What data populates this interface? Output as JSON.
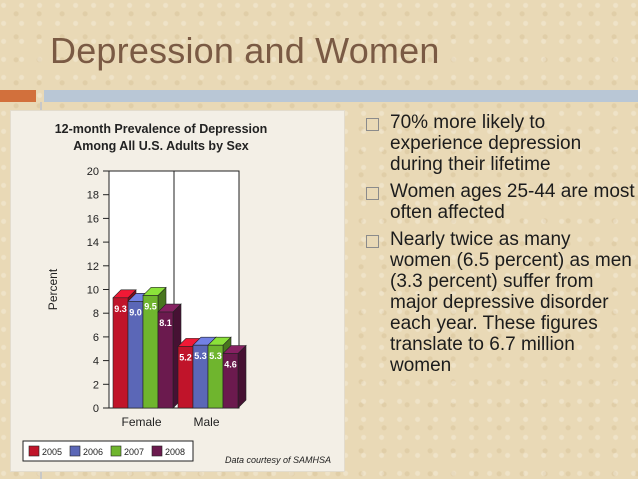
{
  "slide": {
    "title": "Depression and Women"
  },
  "chart_data": {
    "type": "bar",
    "title": "12-month Prevalence of Depression Among All U.S. Adults by Sex",
    "title_lines": [
      "12-month Prevalence of Depression",
      "Among All U.S. Adults by Sex"
    ],
    "ylabel": "Percent",
    "xlabel": "",
    "ylim": [
      0,
      20
    ],
    "yticks": [
      0,
      2,
      4,
      6,
      8,
      10,
      12,
      14,
      16,
      18,
      20
    ],
    "categories": [
      "Female",
      "Male"
    ],
    "series": [
      {
        "name": "2005",
        "color": "#c0142a",
        "values": [
          9.3,
          5.2
        ]
      },
      {
        "name": "2006",
        "color": "#5b67b7",
        "values": [
          9.0,
          5.3
        ]
      },
      {
        "name": "2007",
        "color": "#6fb52e",
        "values": [
          9.5,
          5.3
        ]
      },
      {
        "name": "2008",
        "color": "#6b1a4e",
        "values": [
          8.1,
          4.6
        ]
      }
    ],
    "data_labels": [
      [
        "9.3",
        "9.0",
        "9.5",
        "8.1"
      ],
      [
        "5.2",
        "5.3",
        "5.3",
        "4.6"
      ]
    ],
    "legend_position": "bottom-left",
    "credit": "Data courtesy of SAMHSA",
    "grid": false
  },
  "bullets": [
    {
      "text": "70% more likely to experience depression during their lifetime"
    },
    {
      "text": "Women ages 25-44 are most often affected"
    },
    {
      "text": "Nearly twice as many women (6.5 percent) as men (3.3 percent) suffer from major depressive disorder each year. These figures translate to 6.7 million women"
    }
  ],
  "colors": {
    "title": "#7a5a44",
    "accent_orange": "#d2703c",
    "accent_blue": "#b9c7d6"
  }
}
